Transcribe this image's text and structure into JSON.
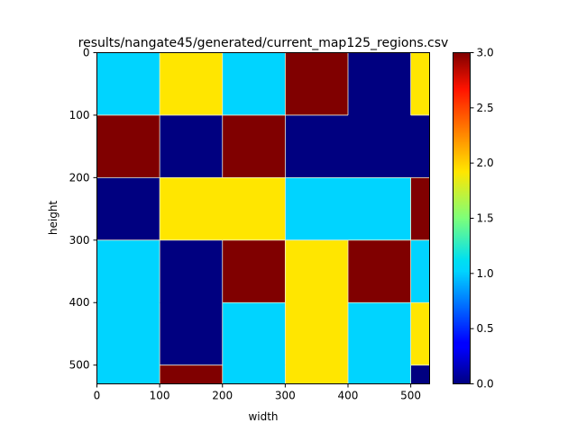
{
  "chart_data": {
    "type": "heatmap",
    "title": "results/nangate45/generated/current_map125_regions.csv",
    "xlabel": "width",
    "ylabel": "height",
    "xlim": [
      0,
      530
    ],
    "ylim": [
      530,
      0
    ],
    "x_ticks": [
      0,
      100,
      200,
      300,
      400,
      500
    ],
    "y_ticks": [
      0,
      100,
      200,
      300,
      400,
      500
    ],
    "colormap": "jet",
    "colorbar": {
      "vmin": 0.0,
      "vmax": 3.0,
      "ticks": [
        "0.0",
        "0.5",
        "1.0",
        "1.5",
        "2.0",
        "2.5",
        "3.0"
      ]
    },
    "x_edges": [
      0,
      100,
      200,
      300,
      400,
      500,
      530
    ],
    "y_edges": [
      0,
      100,
      200,
      300,
      400,
      500,
      530
    ],
    "values": [
      [
        1,
        2,
        1,
        3,
        0,
        2
      ],
      [
        3,
        0,
        3,
        0,
        0,
        0
      ],
      [
        0,
        2,
        2,
        1,
        1,
        3
      ],
      [
        1,
        0,
        3,
        2,
        3,
        1
      ],
      [
        1,
        0,
        1,
        2,
        1,
        2
      ],
      [
        1,
        3,
        1,
        2,
        1,
        0
      ]
    ]
  }
}
